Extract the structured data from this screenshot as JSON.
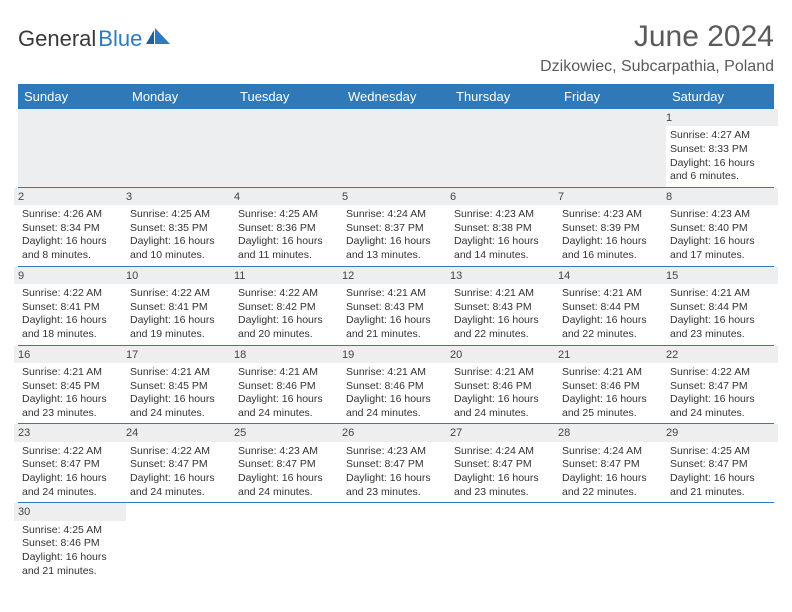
{
  "logo": {
    "text1": "General",
    "text2": "Blue"
  },
  "title": "June 2024",
  "location": "Dzikowiec, Subcarpathia, Poland",
  "header_bg": "#3079b8",
  "header_fg": "#ffffff",
  "daynum_bg": "#eceef0",
  "border_color": "#2a7bbf",
  "days": [
    "Sunday",
    "Monday",
    "Tuesday",
    "Wednesday",
    "Thursday",
    "Friday",
    "Saturday"
  ],
  "weeks": [
    [
      null,
      null,
      null,
      null,
      null,
      null,
      {
        "n": "1",
        "sr": "4:27 AM",
        "ss": "8:33 PM",
        "dl": "16 hours and 6 minutes."
      }
    ],
    [
      {
        "n": "2",
        "sr": "4:26 AM",
        "ss": "8:34 PM",
        "dl": "16 hours and 8 minutes."
      },
      {
        "n": "3",
        "sr": "4:25 AM",
        "ss": "8:35 PM",
        "dl": "16 hours and 10 minutes."
      },
      {
        "n": "4",
        "sr": "4:25 AM",
        "ss": "8:36 PM",
        "dl": "16 hours and 11 minutes."
      },
      {
        "n": "5",
        "sr": "4:24 AM",
        "ss": "8:37 PM",
        "dl": "16 hours and 13 minutes."
      },
      {
        "n": "6",
        "sr": "4:23 AM",
        "ss": "8:38 PM",
        "dl": "16 hours and 14 minutes."
      },
      {
        "n": "7",
        "sr": "4:23 AM",
        "ss": "8:39 PM",
        "dl": "16 hours and 16 minutes."
      },
      {
        "n": "8",
        "sr": "4:23 AM",
        "ss": "8:40 PM",
        "dl": "16 hours and 17 minutes."
      }
    ],
    [
      {
        "n": "9",
        "sr": "4:22 AM",
        "ss": "8:41 PM",
        "dl": "16 hours and 18 minutes."
      },
      {
        "n": "10",
        "sr": "4:22 AM",
        "ss": "8:41 PM",
        "dl": "16 hours and 19 minutes."
      },
      {
        "n": "11",
        "sr": "4:22 AM",
        "ss": "8:42 PM",
        "dl": "16 hours and 20 minutes."
      },
      {
        "n": "12",
        "sr": "4:21 AM",
        "ss": "8:43 PM",
        "dl": "16 hours and 21 minutes."
      },
      {
        "n": "13",
        "sr": "4:21 AM",
        "ss": "8:43 PM",
        "dl": "16 hours and 22 minutes."
      },
      {
        "n": "14",
        "sr": "4:21 AM",
        "ss": "8:44 PM",
        "dl": "16 hours and 22 minutes."
      },
      {
        "n": "15",
        "sr": "4:21 AM",
        "ss": "8:44 PM",
        "dl": "16 hours and 23 minutes."
      }
    ],
    [
      {
        "n": "16",
        "sr": "4:21 AM",
        "ss": "8:45 PM",
        "dl": "16 hours and 23 minutes."
      },
      {
        "n": "17",
        "sr": "4:21 AM",
        "ss": "8:45 PM",
        "dl": "16 hours and 24 minutes."
      },
      {
        "n": "18",
        "sr": "4:21 AM",
        "ss": "8:46 PM",
        "dl": "16 hours and 24 minutes."
      },
      {
        "n": "19",
        "sr": "4:21 AM",
        "ss": "8:46 PM",
        "dl": "16 hours and 24 minutes."
      },
      {
        "n": "20",
        "sr": "4:21 AM",
        "ss": "8:46 PM",
        "dl": "16 hours and 24 minutes."
      },
      {
        "n": "21",
        "sr": "4:21 AM",
        "ss": "8:46 PM",
        "dl": "16 hours and 25 minutes."
      },
      {
        "n": "22",
        "sr": "4:22 AM",
        "ss": "8:47 PM",
        "dl": "16 hours and 24 minutes."
      }
    ],
    [
      {
        "n": "23",
        "sr": "4:22 AM",
        "ss": "8:47 PM",
        "dl": "16 hours and 24 minutes."
      },
      {
        "n": "24",
        "sr": "4:22 AM",
        "ss": "8:47 PM",
        "dl": "16 hours and 24 minutes."
      },
      {
        "n": "25",
        "sr": "4:23 AM",
        "ss": "8:47 PM",
        "dl": "16 hours and 24 minutes."
      },
      {
        "n": "26",
        "sr": "4:23 AM",
        "ss": "8:47 PM",
        "dl": "16 hours and 23 minutes."
      },
      {
        "n": "27",
        "sr": "4:24 AM",
        "ss": "8:47 PM",
        "dl": "16 hours and 23 minutes."
      },
      {
        "n": "28",
        "sr": "4:24 AM",
        "ss": "8:47 PM",
        "dl": "16 hours and 22 minutes."
      },
      {
        "n": "29",
        "sr": "4:25 AM",
        "ss": "8:47 PM",
        "dl": "16 hours and 21 minutes."
      }
    ],
    [
      {
        "n": "30",
        "sr": "4:25 AM",
        "ss": "8:46 PM",
        "dl": "16 hours and 21 minutes."
      },
      null,
      null,
      null,
      null,
      null,
      null
    ]
  ],
  "labels": {
    "sunrise": "Sunrise:",
    "sunset": "Sunset:",
    "daylight": "Daylight:"
  }
}
